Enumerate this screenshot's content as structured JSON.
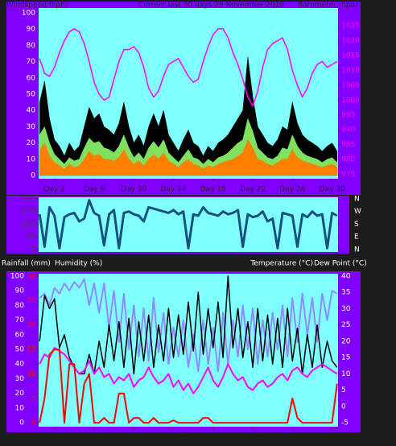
{
  "chart_data": [
    {
      "type": "line",
      "title": "Current last 30 days 29 November 2019",
      "ylabel": "Windspeed (kph)",
      "y2label": "Barometer (hpa)",
      "x": [
        0.5,
        1,
        1.5,
        2,
        2.5,
        3,
        3.5,
        4,
        4.5,
        5,
        5.5,
        6,
        6.5,
        7,
        7.5,
        8,
        8.5,
        9,
        9.5,
        10,
        10.5,
        11,
        11.5,
        12,
        12.5,
        13,
        13.5,
        14,
        14.5,
        15,
        15.5,
        16,
        16.5,
        17,
        17.5,
        18,
        18.5,
        19,
        19.5,
        20,
        20.5,
        21,
        21.5,
        22,
        22.5,
        23,
        23.5,
        24,
        24.5,
        25,
        25.5,
        26,
        26.5,
        27,
        27.5,
        28,
        28.5,
        29,
        29.5,
        30,
        30.5
      ],
      "xlim": [
        0.4,
        30.6
      ],
      "xticks": [
        {
          "value": 2,
          "label": "Day 2"
        },
        {
          "value": 6,
          "label": "Day 6"
        },
        {
          "value": 10,
          "label": "Day 10"
        },
        {
          "value": 14,
          "label": "Day 14"
        },
        {
          "value": 18,
          "label": "Day 18"
        },
        {
          "value": 22,
          "label": "Day 22"
        },
        {
          "value": 26,
          "label": "Day 26"
        },
        {
          "value": 30,
          "label": "Day 30"
        }
      ],
      "ylim": [
        -2,
        103
      ],
      "yticks": [
        0,
        10,
        20,
        30,
        40,
        50,
        60,
        70,
        80,
        90,
        100
      ],
      "y2lim": [
        973.5,
        1031
      ],
      "y2ticks": [
        975,
        980,
        985,
        990,
        995,
        1000,
        1005,
        1010,
        1015,
        1020,
        1025
      ],
      "tick_colors": {
        "y": "#ffffff",
        "y2": "#ff00ff"
      },
      "series": [
        {
          "color": "#000000",
          "style": "area",
          "axis": "y",
          "values": [
            45,
            58,
            35,
            22,
            18,
            12,
            20,
            15,
            18,
            30,
            42,
            35,
            38,
            30,
            28,
            25,
            32,
            45,
            30,
            20,
            25,
            18,
            30,
            38,
            30,
            40,
            25,
            20,
            15,
            22,
            28,
            20,
            18,
            12,
            18,
            15,
            20,
            22,
            25,
            30,
            35,
            40,
            73,
            48,
            30,
            25,
            20,
            18,
            22,
            30,
            28,
            45,
            32,
            25,
            22,
            20,
            18,
            15,
            18,
            20,
            15
          ]
        },
        {
          "color": "#80e060",
          "style": "area",
          "axis": "y",
          "values": [
            25,
            30,
            20,
            13,
            10,
            7,
            11,
            9,
            10,
            17,
            23,
            20,
            21,
            17,
            16,
            14,
            18,
            25,
            17,
            11,
            14,
            10,
            17,
            21,
            17,
            22,
            14,
            11,
            8,
            12,
            16,
            11,
            10,
            7,
            10,
            8,
            11,
            12,
            14,
            17,
            20,
            22,
            35,
            27,
            17,
            14,
            11,
            10,
            12,
            17,
            16,
            25,
            18,
            14,
            12,
            11,
            10,
            8,
            10,
            11,
            8
          ]
        },
        {
          "color": "#ff8000",
          "style": "area",
          "axis": "y",
          "values": [
            16,
            20,
            12,
            8,
            6,
            4,
            7,
            5,
            6,
            10,
            15,
            12,
            13,
            10,
            10,
            9,
            11,
            16,
            10,
            7,
            9,
            6,
            10,
            13,
            10,
            14,
            9,
            7,
            5,
            8,
            10,
            7,
            6,
            4,
            6,
            5,
            7,
            8,
            9,
            10,
            12,
            14,
            22,
            17,
            10,
            9,
            7,
            6,
            8,
            10,
            10,
            16,
            11,
            9,
            8,
            7,
            6,
            5,
            6,
            7,
            5
          ]
        },
        {
          "color": "#ff00ff",
          "style": "line",
          "axis": "y2",
          "values": [
            1014,
            1009,
            1008,
            1011,
            1016,
            1020,
            1023,
            1024,
            1023,
            1019,
            1013,
            1006,
            1002,
            1000,
            1001,
            1007,
            1013,
            1017,
            1017,
            1018,
            1016,
            1011,
            1004,
            1001,
            1003,
            1008,
            1012,
            1013,
            1014,
            1011,
            1008,
            1006,
            1007,
            1013,
            1018,
            1022,
            1024,
            1024,
            1021,
            1016,
            1012,
            1007,
            1001,
            998,
            1003,
            1011,
            1017,
            1019,
            1020,
            1021,
            1017,
            1010,
            1005,
            1001,
            1004,
            1009,
            1012,
            1013,
            1011,
            1012,
            1013
          ]
        }
      ]
    },
    {
      "type": "line",
      "x": [
        0.5,
        1,
        1.5,
        2,
        2.5,
        3,
        3.5,
        4,
        4.5,
        5,
        5.5,
        6,
        6.5,
        7,
        7.5,
        8,
        8.5,
        9,
        9.5,
        10,
        10.5,
        11,
        11.5,
        12,
        12.5,
        13,
        13.5,
        14,
        14.5,
        15,
        15.5,
        16,
        16.5,
        17,
        17.5,
        18,
        18.5,
        19,
        19.5,
        20,
        20.5,
        21,
        21.5,
        22,
        22.5,
        23,
        23.5,
        24,
        24.5,
        25,
        25.5,
        26,
        26.5,
        27,
        27.5,
        28,
        28.5,
        29,
        29.5,
        30,
        30.5
      ],
      "xlim": [
        0.4,
        30.6
      ],
      "ylim": [
        -17,
        371
      ],
      "yticks": [
        0,
        90,
        180,
        270,
        360
      ],
      "y2lim": [
        -17,
        371
      ],
      "y2ticks": [
        {
          "value": 360,
          "label": "N"
        },
        {
          "value": 270,
          "label": "W"
        },
        {
          "value": 180,
          "label": "S"
        },
        {
          "value": 90,
          "label": "E"
        },
        {
          "value": 0,
          "label": "N"
        }
      ],
      "tick_colors": {
        "y": "#404040",
        "y2": "#ffffff"
      },
      "series": [
        {
          "color": "#15507f",
          "style": "line",
          "width": 3,
          "axis": "y",
          "values": [
            250,
            20,
            300,
            240,
            10,
            230,
            250,
            260,
            200,
            220,
            350,
            260,
            240,
            30,
            250,
            280,
            10,
            260,
            270,
            250,
            240,
            200,
            300,
            290,
            280,
            270,
            260,
            280,
            250,
            270,
            10,
            250,
            240,
            300,
            260,
            250,
            240,
            270,
            250,
            260,
            280,
            20,
            250,
            230,
            240,
            270,
            200,
            220,
            10,
            260,
            250,
            240,
            20,
            250,
            230,
            270,
            240,
            250,
            10,
            260,
            240
          ]
        }
      ]
    },
    {
      "type": "line",
      "left_labels": [
        "Rainfall (mm)",
        "Humidity (%)"
      ],
      "right_labels": [
        "Temperature (°C)",
        "Dew Point (°C)"
      ],
      "x": [
        0.5,
        1,
        1.5,
        2,
        2.5,
        3,
        3.5,
        4,
        4.5,
        5,
        5.5,
        6,
        6.5,
        7,
        7.5,
        8,
        8.5,
        9,
        9.5,
        10,
        10.5,
        11,
        11.5,
        12,
        12.5,
        13,
        13.5,
        14,
        14.5,
        15,
        15.5,
        16,
        16.5,
        17,
        17.5,
        18,
        18.5,
        19,
        19.5,
        20,
        20.5,
        21,
        21.5,
        22,
        22.5,
        23,
        23.5,
        24,
        24.5,
        25,
        25.5,
        26,
        26.5,
        27,
        27.5,
        28,
        28.5,
        29,
        29.5,
        30,
        30.5
      ],
      "xlim": [
        0.4,
        30.6
      ],
      "xticks": [
        {
          "value": 2,
          "label": "Day 2"
        },
        {
          "value": 6,
          "label": "Day 6"
        },
        {
          "value": 10,
          "label": "Day 10"
        },
        {
          "value": 14,
          "label": "Day 14"
        },
        {
          "value": 18,
          "label": "Day 18"
        },
        {
          "value": 22,
          "label": "Day 22"
        },
        {
          "value": 26,
          "label": "Day 26"
        },
        {
          "value": 30,
          "label": "Day 30"
        }
      ],
      "ylim": [
        -2.7,
        101.6
      ],
      "yticks": [
        0,
        10,
        20,
        30,
        40,
        50,
        60,
        70,
        80,
        90,
        100
      ],
      "y2lim": [
        -6.2,
        40.7
      ],
      "y2ticks": [
        -5,
        0,
        5,
        10,
        15,
        20,
        25,
        30,
        35,
        40
      ],
      "y3lim": [
        -0.8,
        30.5
      ],
      "y3ticks": [
        0,
        5,
        10,
        15,
        20,
        25,
        30
      ],
      "tick_colors": {
        "y": "#ffffff",
        "y2": "#ffffff",
        "y3": "#ff0000"
      },
      "series": [
        {
          "color": "#8c8cff",
          "style": "line",
          "width": 2,
          "axis": "y",
          "values": [
            85,
            88,
            80,
            92,
            88,
            95,
            90,
            96,
            92,
            98,
            80,
            95,
            75,
            95,
            65,
            90,
            55,
            88,
            50,
            80,
            45,
            78,
            42,
            85,
            48,
            75,
            40,
            65,
            45,
            70,
            38,
            60,
            35,
            70,
            40,
            65,
            35,
            75,
            40,
            70,
            45,
            80,
            50,
            78,
            40,
            70,
            45,
            75,
            50,
            80,
            45,
            85,
            55,
            88,
            60,
            85,
            55,
            88,
            70,
            90,
            88
          ]
        },
        {
          "color": "#000000",
          "style": "line",
          "width": 1.5,
          "axis": "y2",
          "values": [
            20,
            34,
            30,
            33,
            18,
            22,
            15,
            12,
            10,
            10,
            16,
            10,
            20,
            12,
            25,
            14,
            26,
            12,
            27,
            10,
            26,
            14,
            28,
            12,
            25,
            14,
            30,
            15,
            28,
            16,
            32,
            17,
            35,
            16,
            30,
            18,
            32,
            15,
            40,
            18,
            30,
            15,
            26,
            12,
            30,
            14,
            28,
            13,
            27,
            12,
            30,
            14,
            24,
            10,
            22,
            12,
            25,
            12,
            20,
            14,
            12
          ]
        },
        {
          "color": "#ff00ff",
          "style": "line",
          "width": 2,
          "axis": "y2",
          "values": [
            13,
            16,
            15,
            18,
            17,
            16,
            14,
            12,
            10,
            11,
            14,
            10,
            12,
            9,
            10,
            7,
            9,
            8,
            10,
            6,
            8,
            9,
            12,
            9,
            7,
            8,
            10,
            6,
            8,
            5,
            7,
            4,
            6,
            9,
            12,
            8,
            6,
            9,
            13,
            10,
            8,
            9,
            6,
            5,
            7,
            8,
            6,
            7,
            9,
            10,
            8,
            11,
            12,
            10,
            9,
            11,
            12,
            13,
            12,
            11,
            10
          ]
        },
        {
          "color": "#ff0000",
          "style": "line",
          "width": 2,
          "axis": "y3",
          "values": [
            0,
            5,
            14,
            15,
            15,
            0,
            12,
            12,
            0,
            8,
            10,
            0,
            0,
            1,
            0,
            0,
            6,
            6,
            0,
            1,
            1,
            0,
            0,
            1,
            0,
            0,
            0,
            0.5,
            0,
            0,
            0,
            0,
            0,
            1,
            1,
            0,
            0,
            0,
            0,
            0,
            0,
            0,
            0,
            0,
            0,
            0,
            0,
            0,
            0,
            0,
            0,
            5,
            1,
            0,
            0,
            0,
            0,
            0,
            0,
            0,
            8
          ]
        }
      ]
    }
  ]
}
